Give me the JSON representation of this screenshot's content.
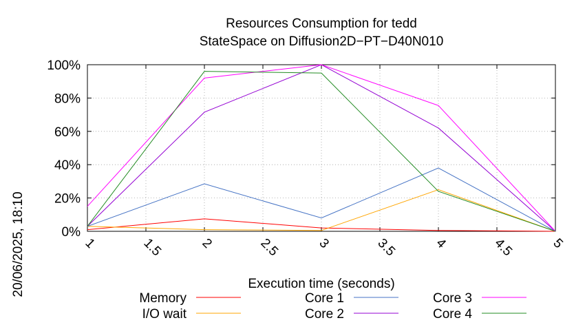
{
  "chart_data": {
    "type": "line",
    "title": "Resources Consumption for tedd",
    "subtitle": "StateSpace on Diffusion2D−PT−D40N010",
    "xlabel": "Execution time (seconds)",
    "ylabel": "",
    "timestamp": "20/06/2025, 18:10",
    "xlim": [
      1,
      5
    ],
    "ylim": [
      0,
      100
    ],
    "x_ticks": [
      "1",
      "1.5",
      "2",
      "2.5",
      "3",
      "3.5",
      "4",
      "4.5",
      "5"
    ],
    "y_ticks": [
      "0%",
      "20%",
      "40%",
      "60%",
      "80%",
      "100%"
    ],
    "grid": true,
    "legend_position": "bottom",
    "x": [
      1,
      2,
      3,
      4,
      5
    ],
    "series": [
      {
        "name": "Memory",
        "color": "#ff0000",
        "values": [
          1,
          7.5,
          2,
          0.5,
          0
        ]
      },
      {
        "name": "I/O wait",
        "color": "#ffa500",
        "values": [
          3,
          1,
          0.5,
          25,
          0
        ]
      },
      {
        "name": "Core 1",
        "color": "#4472c4",
        "values": [
          3,
          28.5,
          8,
          38,
          0
        ]
      },
      {
        "name": "Core 2",
        "color": "#9400d3",
        "values": [
          3,
          71.5,
          100,
          62,
          0
        ]
      },
      {
        "name": "Core 3",
        "color": "#ff00ff",
        "values": [
          15,
          92,
          100,
          75.5,
          0
        ]
      },
      {
        "name": "Core 4",
        "color": "#228b22",
        "values": [
          3,
          96,
          95,
          24,
          0
        ]
      }
    ]
  }
}
